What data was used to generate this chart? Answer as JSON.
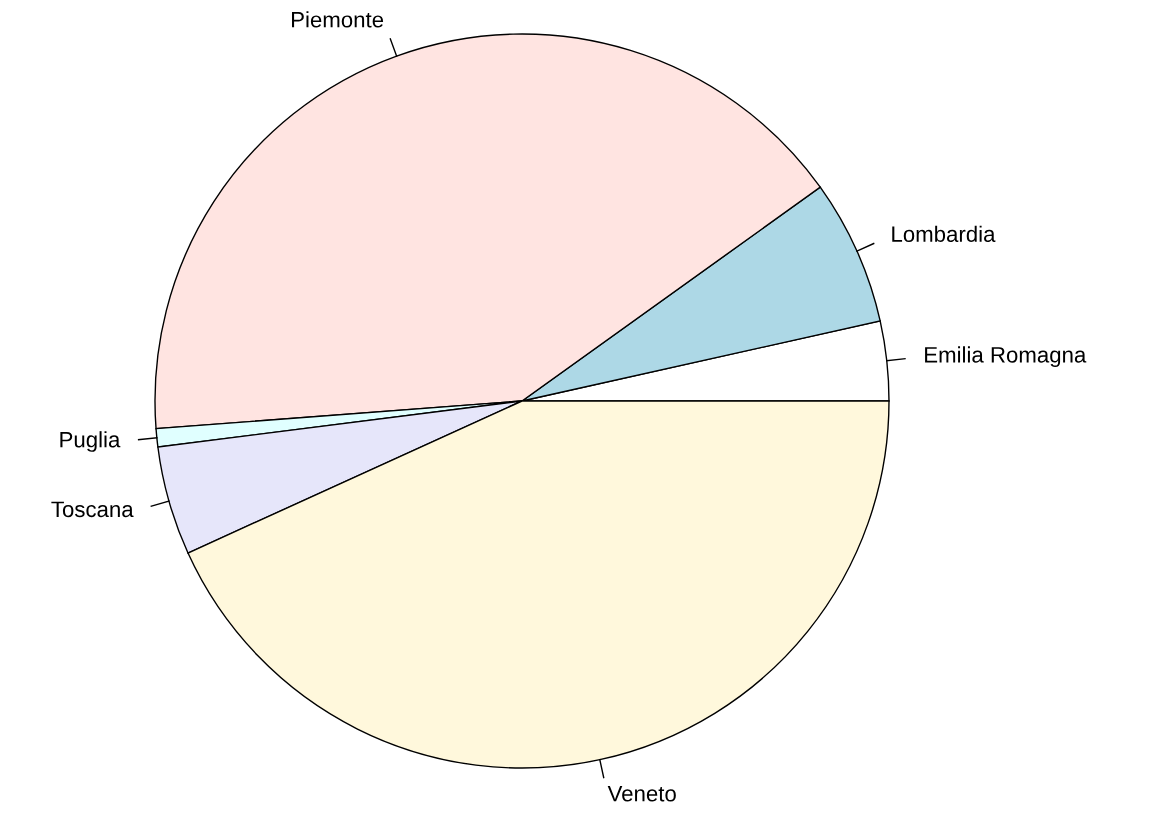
{
  "chart_data": {
    "type": "pie",
    "categories": [
      "Emilia Romagna",
      "Lombardia",
      "Piemonte",
      "Puglia",
      "Toscana",
      "Veneto"
    ],
    "values": [
      3.5,
      6.4,
      41.3,
      0.8,
      4.8,
      43.2
    ],
    "colors": [
      "#ffffff",
      "#add8e6",
      "#ffe4e1",
      "#e0ffff",
      "#e6e6fa",
      "#fff8dc"
    ]
  }
}
